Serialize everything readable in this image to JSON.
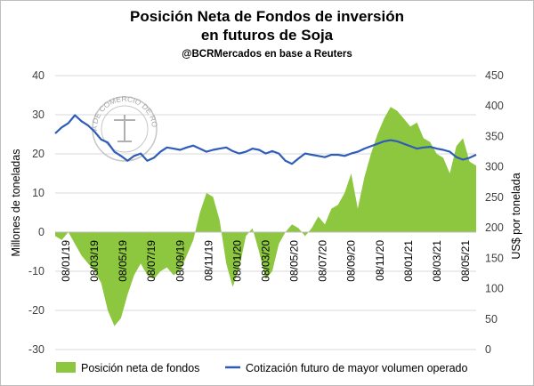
{
  "chart_data": {
    "type": "area",
    "title": "Posición Neta de Fondos de inversión",
    "title_line2": "en futuros de Soja",
    "subtitle": "@BCRMercados  en base a Reuters",
    "ylabel": "Millones de toneladas",
    "y2label": "US$ por tonelada",
    "ylim": [
      -30,
      40
    ],
    "y2lim": [
      0,
      450
    ],
    "yticks": [
      -30,
      -20,
      -10,
      0,
      10,
      20,
      30,
      40
    ],
    "y2ticks": [
      0,
      50,
      100,
      150,
      200,
      250,
      300,
      350,
      400,
      450
    ],
    "xticks": [
      "08/01/19",
      "08/03/19",
      "08/05/19",
      "08/07/19",
      "08/09/19",
      "08/11/19",
      "08/01/20",
      "08/03/20",
      "08/05/20",
      "08/07/20",
      "08/09/20",
      "08/11/20",
      "08/01/21",
      "08/03/21",
      "08/05/21"
    ],
    "grid": true,
    "legend_position": "bottom",
    "colors": {
      "area": "#8dc63f",
      "line": "#2e5cb8",
      "grid": "#d9d9d9"
    },
    "series": [
      {
        "name": "Posición neta de fondos",
        "axis": "left",
        "type": "area",
        "x": [
          0,
          2,
          4,
          6,
          8,
          10,
          12,
          14,
          16,
          18,
          20,
          22,
          24,
          26,
          28,
          30,
          32,
          34,
          36,
          38,
          40,
          42,
          44,
          46,
          48,
          50,
          52,
          54,
          56,
          58,
          60,
          62,
          64,
          66,
          68,
          70,
          72,
          74,
          76,
          78,
          80,
          82,
          84,
          86,
          88,
          90,
          92,
          94,
          96,
          98,
          100,
          102,
          104,
          106,
          108,
          110,
          112,
          114,
          116,
          118,
          120,
          122,
          124,
          126,
          128
        ],
        "values": [
          -1,
          -2,
          0,
          -3,
          -6,
          -8,
          -10,
          -13,
          -20,
          -24,
          -22,
          -16,
          -11,
          -8,
          -11,
          -12,
          -10,
          -9,
          -11,
          -10,
          -6,
          -2,
          5,
          10,
          9,
          3,
          -8,
          -14,
          -9,
          -1,
          1,
          -5,
          -12,
          -10,
          -3,
          0,
          2,
          1,
          -1,
          1,
          4,
          2,
          6,
          7,
          10,
          15,
          6,
          14,
          20,
          25,
          29,
          32,
          31,
          29,
          27,
          28,
          24,
          23,
          20,
          19,
          15,
          22,
          24,
          18,
          17
        ]
      },
      {
        "name": "Cotización futuro de mayor volumen operado",
        "axis": "right",
        "type": "line",
        "x": [
          0,
          2,
          4,
          6,
          8,
          10,
          12,
          14,
          16,
          18,
          20,
          22,
          24,
          26,
          28,
          30,
          32,
          34,
          36,
          38,
          40,
          42,
          44,
          46,
          48,
          50,
          52,
          54,
          56,
          58,
          60,
          62,
          64,
          66,
          68,
          70,
          72,
          74,
          76,
          78,
          80,
          82,
          84,
          86,
          88,
          90,
          92,
          94,
          96,
          98,
          100,
          102,
          104,
          106,
          108,
          110,
          112,
          114,
          116,
          118,
          120,
          122,
          124,
          126,
          128
        ],
        "values": [
          355,
          365,
          372,
          385,
          375,
          368,
          358,
          345,
          340,
          325,
          318,
          310,
          318,
          322,
          310,
          315,
          325,
          332,
          330,
          328,
          332,
          335,
          330,
          325,
          328,
          330,
          332,
          326,
          322,
          325,
          330,
          328,
          322,
          326,
          322,
          310,
          305,
          314,
          322,
          320,
          318,
          316,
          320,
          320,
          318,
          322,
          325,
          330,
          334,
          338,
          342,
          344,
          342,
          338,
          334,
          330,
          332,
          333,
          330,
          328,
          325,
          316,
          312,
          315,
          320
        ]
      }
    ]
  },
  "watermark": "BOLSA DE COMERCIO DE ROSARIO"
}
